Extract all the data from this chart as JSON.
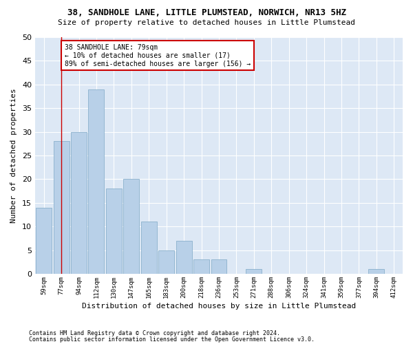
{
  "title1": "38, SANDHOLE LANE, LITTLE PLUMSTEAD, NORWICH, NR13 5HZ",
  "title2": "Size of property relative to detached houses in Little Plumstead",
  "xlabel": "Distribution of detached houses by size in Little Plumstead",
  "ylabel": "Number of detached properties",
  "categories": [
    "59sqm",
    "77sqm",
    "94sqm",
    "112sqm",
    "130sqm",
    "147sqm",
    "165sqm",
    "183sqm",
    "200sqm",
    "218sqm",
    "236sqm",
    "253sqm",
    "271sqm",
    "288sqm",
    "306sqm",
    "324sqm",
    "341sqm",
    "359sqm",
    "377sqm",
    "394sqm",
    "412sqm"
  ],
  "values": [
    14,
    28,
    30,
    39,
    18,
    20,
    11,
    5,
    7,
    3,
    3,
    0,
    1,
    0,
    0,
    0,
    0,
    0,
    0,
    1,
    0
  ],
  "bar_color": "#b8d0e8",
  "bar_edgecolor": "#8ab0cc",
  "plot_bg_color": "#dde8f5",
  "fig_bg_color": "#ffffff",
  "grid_color": "#ffffff",
  "annotation_line1": "38 SANDHOLE LANE: 79sqm",
  "annotation_line2": "← 10% of detached houses are smaller (17)",
  "annotation_line3": "89% of semi-detached houses are larger (156) →",
  "annotation_box_color": "#ffffff",
  "annotation_box_edgecolor": "#cc0000",
  "redline_x": 1,
  "ylim": [
    0,
    50
  ],
  "yticks": [
    0,
    5,
    10,
    15,
    20,
    25,
    30,
    35,
    40,
    45,
    50
  ],
  "footer1": "Contains HM Land Registry data © Crown copyright and database right 2024.",
  "footer2": "Contains public sector information licensed under the Open Government Licence v3.0."
}
